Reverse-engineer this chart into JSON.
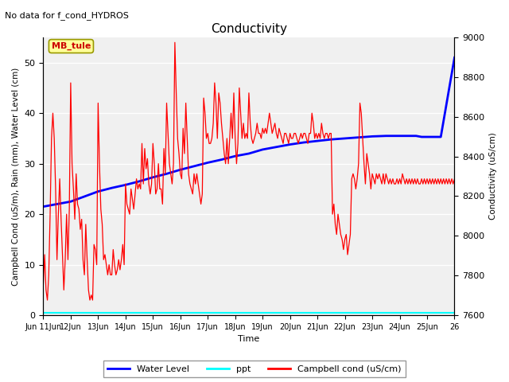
{
  "title": "Conductivity",
  "subtitle": "No data for f_cond_HYDROS",
  "xlabel": "Time",
  "ylabel_left": "Campbell Cond (uS/m), Rain (mm), Water Level (cm)",
  "ylabel_right": "Conductivity (uS/cm)",
  "ylim_left": [
    0,
    55
  ],
  "ylim_right": [
    7600,
    9000
  ],
  "xlim": [
    0,
    15
  ],
  "xtick_positions": [
    0,
    1,
    2,
    3,
    4,
    5,
    6,
    7,
    8,
    9,
    10,
    11,
    12,
    13,
    14,
    15
  ],
  "xtick_labels": [
    "Jun 11Jun",
    "12Jun",
    "13Jun",
    "14Jun",
    "15Jun",
    "16Jun",
    "17Jun",
    "18Jun",
    "19Jun",
    "20Jun",
    "21Jun",
    "22Jun",
    "23Jun",
    "24Jun",
    "25Jun",
    "26"
  ],
  "background_color": "#e8e8e8",
  "plot_bg_color": "#f0f0f0",
  "legend_entries": [
    "Water Level",
    "ppt",
    "Campbell cond (uS/cm)"
  ],
  "legend_colors": [
    "blue",
    "cyan",
    "red"
  ],
  "annotation_box": {
    "text": "MB_tule",
    "color": "#cc0000",
    "bg": "#ffff99"
  },
  "water_level_color": "blue",
  "campbell_color": "red",
  "ppt_color": "cyan",
  "water_level_x": [
    0,
    0.5,
    1,
    1.5,
    2,
    2.5,
    3,
    3.5,
    4,
    4.5,
    5,
    5.5,
    6,
    6.5,
    7,
    7.5,
    8,
    8.5,
    9,
    9.5,
    10,
    10.5,
    11,
    11.5,
    12,
    12.5,
    13,
    13.2,
    13.4,
    13.6,
    13.8,
    14.0,
    14.01,
    14.5,
    15
  ],
  "water_level_y": [
    21.5,
    22.0,
    22.5,
    23.5,
    24.5,
    25.2,
    25.8,
    26.5,
    27.3,
    28.0,
    28.8,
    29.5,
    30.2,
    30.8,
    31.5,
    32.0,
    32.8,
    33.3,
    33.8,
    34.2,
    34.5,
    34.8,
    35.0,
    35.2,
    35.4,
    35.5,
    35.5,
    35.5,
    35.5,
    35.5,
    35.3,
    35.3,
    35.3,
    35.3,
    51.0
  ],
  "campbell_x": [
    0.0,
    0.05,
    0.1,
    0.15,
    0.2,
    0.25,
    0.3,
    0.35,
    0.4,
    0.45,
    0.5,
    0.55,
    0.6,
    0.65,
    0.7,
    0.75,
    0.8,
    0.85,
    0.9,
    0.95,
    1.0,
    1.05,
    1.1,
    1.15,
    1.2,
    1.25,
    1.3,
    1.35,
    1.4,
    1.45,
    1.5,
    1.55,
    1.6,
    1.65,
    1.7,
    1.75,
    1.8,
    1.85,
    1.9,
    1.95,
    2.0,
    2.05,
    2.1,
    2.15,
    2.2,
    2.25,
    2.3,
    2.35,
    2.4,
    2.45,
    2.5,
    2.55,
    2.6,
    2.65,
    2.7,
    2.75,
    2.8,
    2.85,
    2.9,
    2.95,
    3.0,
    3.05,
    3.1,
    3.15,
    3.2,
    3.25,
    3.3,
    3.35,
    3.4,
    3.45,
    3.5,
    3.55,
    3.6,
    3.65,
    3.7,
    3.75,
    3.8,
    3.85,
    3.9,
    3.95,
    4.0,
    4.05,
    4.1,
    4.15,
    4.2,
    4.25,
    4.3,
    4.35,
    4.4,
    4.45,
    4.5,
    4.55,
    4.6,
    4.65,
    4.7,
    4.75,
    4.8,
    4.85,
    4.9,
    4.95,
    5.0,
    5.05,
    5.1,
    5.15,
    5.2,
    5.25,
    5.3,
    5.35,
    5.4,
    5.45,
    5.5,
    5.55,
    5.6,
    5.65,
    5.7,
    5.75,
    5.8,
    5.85,
    5.9,
    5.95,
    6.0,
    6.05,
    6.1,
    6.15,
    6.2,
    6.25,
    6.3,
    6.35,
    6.4,
    6.45,
    6.5,
    6.55,
    6.6,
    6.65,
    6.7,
    6.75,
    6.8,
    6.85,
    6.9,
    6.95,
    7.0,
    7.05,
    7.1,
    7.15,
    7.2,
    7.25,
    7.3,
    7.35,
    7.4,
    7.45,
    7.5,
    7.55,
    7.6,
    7.65,
    7.7,
    7.75,
    7.8,
    7.85,
    7.9,
    7.95,
    8.0,
    8.05,
    8.1,
    8.15,
    8.2,
    8.25,
    8.3,
    8.35,
    8.4,
    8.45,
    8.5,
    8.55,
    8.6,
    8.65,
    8.7,
    8.75,
    8.8,
    8.85,
    8.9,
    8.95,
    9.0,
    9.05,
    9.1,
    9.15,
    9.2,
    9.25,
    9.3,
    9.35,
    9.4,
    9.45,
    9.5,
    9.55,
    9.6,
    9.65,
    9.7,
    9.75,
    9.8,
    9.85,
    9.9,
    9.95,
    10.0,
    10.05,
    10.1,
    10.15,
    10.2,
    10.25,
    10.3,
    10.35,
    10.4,
    10.45,
    10.5,
    10.55,
    10.6,
    10.65,
    10.7,
    10.75,
    10.8,
    10.85,
    10.9,
    10.95,
    11.0,
    11.05,
    11.1,
    11.15,
    11.2,
    11.25,
    11.3,
    11.35,
    11.4,
    11.45,
    11.5,
    11.55,
    11.6,
    11.65,
    11.7,
    11.75,
    11.8,
    11.85,
    11.9,
    11.95,
    12.0,
    12.05,
    12.1,
    12.15,
    12.2,
    12.25,
    12.3,
    12.35,
    12.4,
    12.45,
    12.5,
    12.55,
    12.6,
    12.65,
    12.7,
    12.75,
    12.8,
    12.85,
    12.9,
    12.95,
    13.0,
    13.05,
    13.1,
    13.15,
    13.2,
    13.25,
    13.3,
    13.35,
    13.4,
    13.45,
    13.5,
    13.55,
    13.6,
    13.65,
    13.7,
    13.75,
    13.8,
    13.85,
    13.9,
    13.95,
    14.0,
    14.05,
    14.1,
    14.15,
    14.2,
    14.25,
    14.3,
    14.35,
    14.4,
    14.45,
    14.5,
    14.55,
    14.6,
    14.65,
    14.7,
    14.75,
    14.8,
    14.85,
    14.9,
    14.95,
    15.0
  ],
  "campbell_y": [
    6,
    12,
    5,
    3,
    8,
    20,
    35,
    40,
    35,
    25,
    11,
    20,
    27,
    19,
    12,
    5,
    11,
    20,
    11,
    21,
    46,
    30,
    25,
    19,
    28,
    22,
    21,
    17,
    19,
    11,
    8,
    18,
    11,
    5,
    3,
    4,
    3,
    14,
    13,
    10,
    42,
    30,
    21,
    18,
    11,
    12,
    10,
    8,
    10,
    8,
    8,
    13,
    10,
    8,
    9,
    11,
    9,
    11,
    14,
    10,
    26,
    22,
    21,
    20,
    25,
    23,
    21,
    24,
    27,
    25,
    26,
    25,
    34,
    26,
    33,
    29,
    31,
    26,
    24,
    26,
    34,
    30,
    24,
    25,
    30,
    25,
    25,
    22,
    33,
    28,
    42,
    36,
    30,
    28,
    26,
    30,
    54,
    44,
    35,
    32,
    28,
    27,
    37,
    32,
    42,
    35,
    28,
    26,
    25,
    24,
    28,
    26,
    28,
    26,
    24,
    22,
    24,
    43,
    40,
    35,
    36,
    34,
    34,
    35,
    38,
    46,
    42,
    35,
    44,
    42,
    38,
    35,
    32,
    30,
    35,
    30,
    35,
    40,
    35,
    44,
    35,
    30,
    34,
    45,
    40,
    35,
    38,
    35,
    36,
    35,
    44,
    38,
    35,
    34,
    35,
    36,
    38,
    36,
    36,
    35,
    37,
    36,
    37,
    36,
    38,
    40,
    38,
    36,
    37,
    38,
    36,
    35,
    37,
    36,
    35,
    34,
    36,
    36,
    35,
    34,
    36,
    35,
    35,
    36,
    36,
    35,
    34,
    35,
    36,
    35,
    36,
    36,
    35,
    34,
    36,
    36,
    40,
    38,
    35,
    36,
    35,
    36,
    35,
    38,
    36,
    35,
    36,
    36,
    35,
    36,
    36,
    20,
    22,
    18,
    16,
    20,
    18,
    16,
    15,
    13,
    15,
    16,
    12,
    14,
    16,
    27,
    28,
    27,
    25,
    27,
    30,
    42,
    40,
    35,
    30,
    26,
    32,
    30,
    28,
    25,
    28,
    27,
    26,
    28,
    27,
    28,
    27,
    26,
    28,
    26,
    28,
    27,
    26,
    27,
    26,
    27,
    26,
    26,
    27,
    26,
    27,
    26,
    28,
    27,
    26,
    27,
    26,
    27,
    26,
    27,
    26,
    27,
    26,
    27,
    26,
    26,
    27,
    26,
    27,
    26,
    27,
    26,
    27,
    26,
    27,
    26,
    27,
    26,
    27,
    26,
    27,
    26,
    27,
    26,
    27,
    26,
    27,
    26,
    27,
    26,
    27
  ],
  "ppt_y": 0.5
}
